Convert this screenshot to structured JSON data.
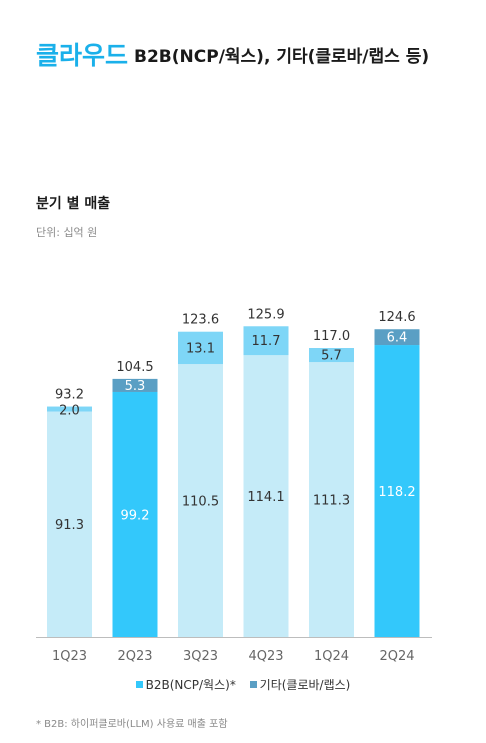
{
  "header": {
    "title_accent": "클라우드",
    "title_rest": "B2B(NCP/웍스), 기타(클로바/랩스 등)"
  },
  "section": {
    "title": "분기 별 매출",
    "unit": "단위: 십억 원"
  },
  "colors": {
    "b2b_light": "#c5ebf8",
    "b2b_highlight": "#33c8fb",
    "other_light": "#7ed6f7",
    "other_highlight": "#5a9fc4",
    "axis": "#bdbdbd"
  },
  "chart_data": {
    "type": "bar",
    "stacked": true,
    "categories": [
      "1Q23",
      "2Q23",
      "3Q23",
      "4Q23",
      "1Q24",
      "2Q24"
    ],
    "series": [
      {
        "name": "B2B(NCP/웍스)*",
        "values": [
          91.3,
          99.2,
          110.5,
          114.1,
          111.3,
          118.2
        ]
      },
      {
        "name": "기타(클로바/랩스)",
        "values": [
          2.0,
          5.3,
          13.1,
          11.7,
          5.7,
          6.4
        ]
      }
    ],
    "totals": [
      93.2,
      104.5,
      123.6,
      125.9,
      117.0,
      124.6
    ],
    "highlighted": [
      "2Q23",
      "2Q24"
    ],
    "legend_position": "bottom",
    "grid": false,
    "ylim": [
      0,
      130
    ]
  },
  "footnote": "* B2B: 하이퍼클로바(LLM) 사용료 매출 포함"
}
